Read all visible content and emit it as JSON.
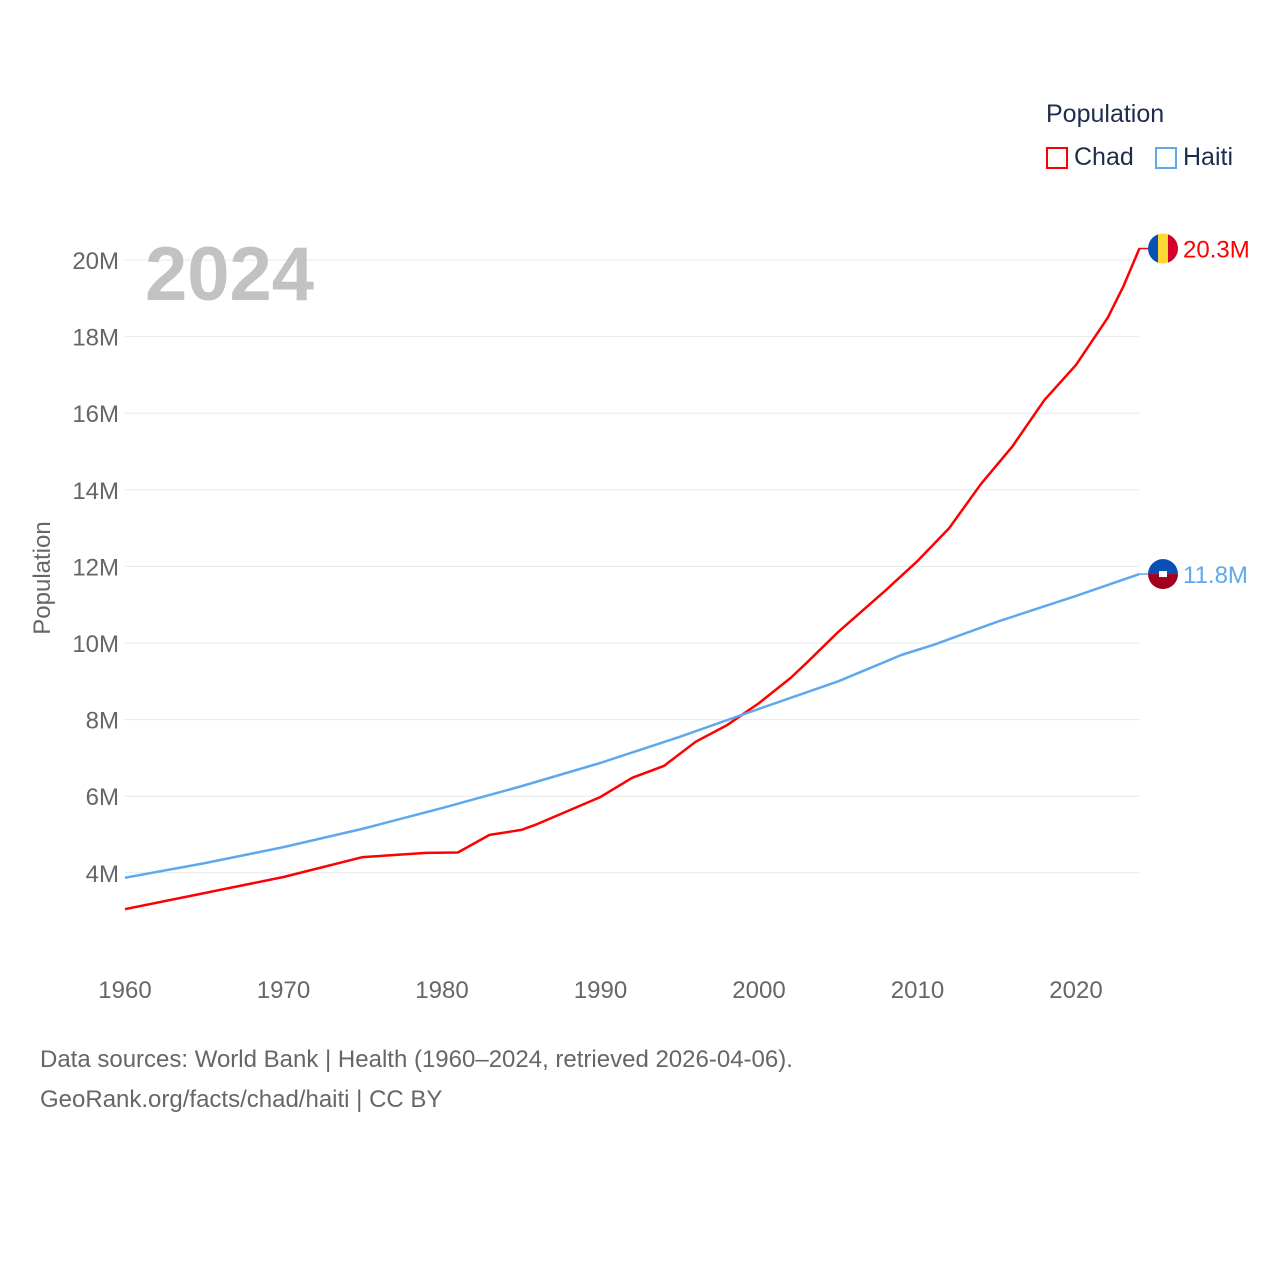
{
  "chart_data": {
    "type": "line",
    "title": "",
    "year_label": "2024",
    "xlabel": "",
    "ylabel": "Population",
    "xlim": [
      1960,
      2024
    ],
    "ylim": [
      0,
      21
    ],
    "x_ticks": [
      1960,
      1970,
      1980,
      1990,
      2000,
      2010,
      2020
    ],
    "x_tick_labels": [
      "1960",
      "1970",
      "1980",
      "1990",
      "2000",
      "2010",
      "2020"
    ],
    "y_ticks": [
      4,
      6,
      8,
      10,
      12,
      14,
      16,
      18,
      20
    ],
    "y_tick_labels": [
      "4M",
      "6M",
      "8M",
      "10M",
      "12M",
      "14M",
      "16M",
      "18M",
      "20M"
    ],
    "legend": {
      "title": "Population",
      "placement": "top-right"
    },
    "series": [
      {
        "name": "Chad",
        "color": "#ff0000",
        "end_label": "20.3M",
        "x": [
          1960,
          1965,
          1970,
          1975,
          1979,
          1981,
          1983,
          1985,
          1986,
          1990,
          1992,
          1994,
          1996,
          1998,
          2000,
          2002,
          2003,
          2005,
          2008,
          2010,
          2012,
          2014,
          2016,
          2018,
          2020,
          2022,
          2023,
          2024
        ],
        "values": [
          3.05,
          3.47,
          3.89,
          4.41,
          4.52,
          4.53,
          4.99,
          5.12,
          5.27,
          5.98,
          6.48,
          6.79,
          7.42,
          7.86,
          8.43,
          9.09,
          9.48,
          10.29,
          11.38,
          12.14,
          13.0,
          14.15,
          15.14,
          16.34,
          17.26,
          18.49,
          19.32,
          20.3
        ]
      },
      {
        "name": "Haiti",
        "color": "#5ea8ee",
        "end_label": "11.8M",
        "x": [
          1960,
          1965,
          1970,
          1975,
          1980,
          1985,
          1990,
          1995,
          2000,
          2005,
          2009,
          2011,
          2015,
          2020,
          2024
        ],
        "values": [
          3.87,
          4.25,
          4.67,
          5.15,
          5.69,
          6.26,
          6.87,
          7.55,
          8.28,
          9.0,
          9.69,
          9.95,
          10.55,
          11.23,
          11.8
        ]
      }
    ]
  },
  "footer": {
    "line1": "Data sources: World Bank | Health (1960–2024, retrieved 2026-04-06).",
    "line2": "GeoRank.org/facts/chad/haiti | CC BY"
  }
}
